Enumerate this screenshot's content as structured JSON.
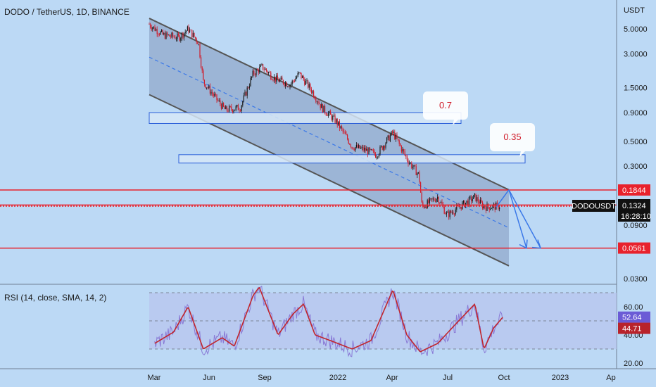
{
  "header": {
    "title": "DODO / TetherUS, 1D, BINANCE",
    "rsi_label": "RSI (14, close, SMA, 14, 2)"
  },
  "colors": {
    "background": "#bcd9f5",
    "candle_up": "#1a1a1a",
    "candle_down": "#d01c2a",
    "channel_fill": "#8aa2c4",
    "channel_line": "#555555",
    "level_line": "#e8222d",
    "arrow": "#3a78e8",
    "zone_fill": "#d6e6f7",
    "zone_stroke": "#2b5fd9",
    "rsi_line": "#8a7ad6",
    "rsi_ma": "#c0262d",
    "rsi_band": "#b8c4ee"
  },
  "price_axis": {
    "unit_label": "USDT",
    "ticks": [
      "5.0000",
      "3.0000",
      "1.5000",
      "0.9000",
      "0.5000",
      "0.3000",
      "0.0900",
      "0.0300"
    ],
    "tick_values": [
      5.0,
      3.0,
      1.5,
      0.9,
      0.5,
      0.3,
      0.09,
      0.03
    ],
    "scale": "log"
  },
  "time_axis": {
    "ticks": [
      "Mar",
      "Jun",
      "Sep",
      "2022",
      "Apr",
      "Jul",
      "Oct",
      "2023",
      "Ap"
    ]
  },
  "levels": [
    {
      "label": "0.1844",
      "value": 0.1844
    },
    {
      "label": "0.1355",
      "value": 0.1355
    },
    {
      "label": "0.0561",
      "value": 0.0561
    }
  ],
  "current_price": {
    "symbol": "DODOUSDT",
    "price": "0.1324",
    "countdown": "16:28:10",
    "value": 0.1324
  },
  "zones": [
    {
      "callout": "0.7",
      "low": 0.72,
      "high": 0.9
    },
    {
      "callout": "0.35",
      "low": 0.32,
      "high": 0.38
    }
  ],
  "rsi": {
    "axis_ticks": [
      "60.00",
      "40.00",
      "20.00"
    ],
    "tick_values": [
      60,
      40,
      20
    ],
    "value_label": "52.64",
    "ma_label": "44.71",
    "value": 52.64,
    "ma": 44.71,
    "upper_band": 70,
    "lower_band": 30,
    "mid": 50
  },
  "chart_data": {
    "type": "candlestick",
    "title": "DODO / TetherUS, 1D, BINANCE",
    "x_ticks": [
      "Mar",
      "Jun",
      "Sep",
      "2022",
      "Apr",
      "Jul",
      "Oct",
      "2023",
      "Ap"
    ],
    "y_scale": "log",
    "y_ticks": [
      5.0,
      3.0,
      1.5,
      0.9,
      0.5,
      0.3,
      0.09,
      0.03
    ],
    "price_path": [
      {
        "date": "2021-02-20",
        "close": 5.5
      },
      {
        "date": "2021-03-15",
        "close": 4.4
      },
      {
        "date": "2021-04-10",
        "close": 4.2
      },
      {
        "date": "2021-04-25",
        "close": 5.0
      },
      {
        "date": "2021-05-12",
        "close": 3.8
      },
      {
        "date": "2021-05-20",
        "close": 1.7
      },
      {
        "date": "2021-06-10",
        "close": 1.2
      },
      {
        "date": "2021-06-25",
        "close": 0.95
      },
      {
        "date": "2021-07-20",
        "close": 1.0
      },
      {
        "date": "2021-08-10",
        "close": 2.0
      },
      {
        "date": "2021-08-25",
        "close": 2.3
      },
      {
        "date": "2021-09-15",
        "close": 1.8
      },
      {
        "date": "2021-10-10",
        "close": 1.6
      },
      {
        "date": "2021-10-25",
        "close": 2.0
      },
      {
        "date": "2021-11-15",
        "close": 1.4
      },
      {
        "date": "2021-12-01",
        "close": 1.0
      },
      {
        "date": "2021-12-25",
        "close": 0.75
      },
      {
        "date": "2022-01-20",
        "close": 0.45
      },
      {
        "date": "2022-02-10",
        "close": 0.42
      },
      {
        "date": "2022-03-01",
        "close": 0.38
      },
      {
        "date": "2022-03-28",
        "close": 0.6
      },
      {
        "date": "2022-04-20",
        "close": 0.35
      },
      {
        "date": "2022-05-10",
        "close": 0.25
      },
      {
        "date": "2022-05-15",
        "close": 0.13
      },
      {
        "date": "2022-06-10",
        "close": 0.16
      },
      {
        "date": "2022-06-25",
        "close": 0.11
      },
      {
        "date": "2022-07-15",
        "close": 0.13
      },
      {
        "date": "2022-08-10",
        "close": 0.16
      },
      {
        "date": "2022-08-25",
        "close": 0.13
      },
      {
        "date": "2022-09-20",
        "close": 0.1324
      }
    ],
    "channel": {
      "upper": [
        {
          "date": "2021-02-20",
          "value": 6.2
        },
        {
          "date": "2022-10-05",
          "value": 0.185
        }
      ],
      "mid": [
        {
          "date": "2021-02-20",
          "value": 2.8
        },
        {
          "date": "2022-10-05",
          "value": 0.085
        }
      ],
      "lower": [
        {
          "date": "2021-02-20",
          "value": 1.3
        },
        {
          "date": "2022-10-05",
          "value": 0.039
        }
      ]
    },
    "levels": [
      0.1844,
      0.1355,
      0.0561
    ],
    "rsi_path": [
      {
        "date": "2021-03-01",
        "value": 34
      },
      {
        "date": "2021-04-01",
        "value": 42
      },
      {
        "date": "2021-04-25",
        "value": 60
      },
      {
        "date": "2021-05-20",
        "value": 30
      },
      {
        "date": "2021-06-20",
        "value": 38
      },
      {
        "date": "2021-07-10",
        "value": 32
      },
      {
        "date": "2021-08-10",
        "value": 68
      },
      {
        "date": "2021-08-20",
        "value": 74
      },
      {
        "date": "2021-09-20",
        "value": 40
      },
      {
        "date": "2021-10-15",
        "value": 55
      },
      {
        "date": "2021-11-01",
        "value": 62
      },
      {
        "date": "2021-11-20",
        "value": 40
      },
      {
        "date": "2021-12-15",
        "value": 36
      },
      {
        "date": "2022-01-20",
        "value": 30
      },
      {
        "date": "2022-02-20",
        "value": 36
      },
      {
        "date": "2022-03-28",
        "value": 72
      },
      {
        "date": "2022-04-20",
        "value": 40
      },
      {
        "date": "2022-05-12",
        "value": 28
      },
      {
        "date": "2022-06-10",
        "value": 34
      },
      {
        "date": "2022-07-10",
        "value": 48
      },
      {
        "date": "2022-08-10",
        "value": 62
      },
      {
        "date": "2022-08-25",
        "value": 30
      },
      {
        "date": "2022-09-10",
        "value": 45
      },
      {
        "date": "2022-09-25",
        "value": 52.64
      }
    ]
  }
}
